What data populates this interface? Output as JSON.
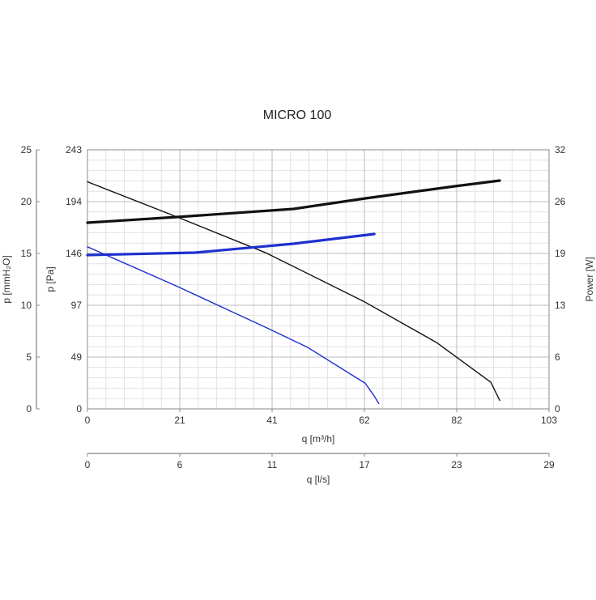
{
  "chart_data": {
    "type": "line",
    "title": "MICRO 100",
    "xlabel": "q [m³/h]",
    "xlabel2": "q [l/s]",
    "ylabel_left_outer": "p [mmH₂O]",
    "ylabel_left_inner": "p [Pa]",
    "ylabel_right": "Power [W]",
    "xlim": [
      0,
      103
    ],
    "ylim": [
      0,
      243
    ],
    "ylim_right": [
      0,
      32
    ],
    "x_ticks": [
      "0",
      "21",
      "41",
      "62",
      "82",
      "103"
    ],
    "x2_ticks": [
      "0",
      "6",
      "11",
      "17",
      "23",
      "29"
    ],
    "y_ticks_outer": [
      "0",
      "5",
      "10",
      "15",
      "20",
      "25"
    ],
    "y_ticks_inner": [
      "0",
      "49",
      "97",
      "146",
      "194",
      "243"
    ],
    "y_ticks_right": [
      "0",
      "6",
      "13",
      "19",
      "26",
      "32"
    ],
    "grid": true,
    "colors": {
      "black": "#111111",
      "blue": "#1f2fd0",
      "grid": "#bbbbbb",
      "minor_grid": "#e2e2e2"
    },
    "series": [
      {
        "axis": "left",
        "color": "#111111",
        "points": [
          [
            0,
            213
          ],
          [
            20,
            180
          ],
          [
            40,
            146
          ],
          [
            62,
            100
          ],
          [
            78,
            62
          ],
          [
            90,
            25
          ],
          [
            92,
            8
          ]
        ]
      },
      {
        "axis": "left",
        "color": "#1f2fd0",
        "points": [
          [
            0,
            152
          ],
          [
            20,
            115
          ],
          [
            40,
            76
          ],
          [
            49,
            58
          ],
          [
            62,
            24
          ],
          [
            64,
            12
          ],
          [
            65,
            5
          ]
        ]
      },
      {
        "axis": "right",
        "color": "#111111",
        "points": [
          [
            0,
            23.0
          ],
          [
            20,
            23.7
          ],
          [
            46,
            24.7
          ],
          [
            62,
            26.0
          ],
          [
            82,
            27.5
          ],
          [
            92,
            28.2
          ]
        ]
      },
      {
        "axis": "right",
        "color": "#1f2fd0",
        "points": [
          [
            0,
            19.0
          ],
          [
            24,
            19.3
          ],
          [
            46,
            20.4
          ],
          [
            64,
            21.6
          ]
        ]
      }
    ]
  }
}
